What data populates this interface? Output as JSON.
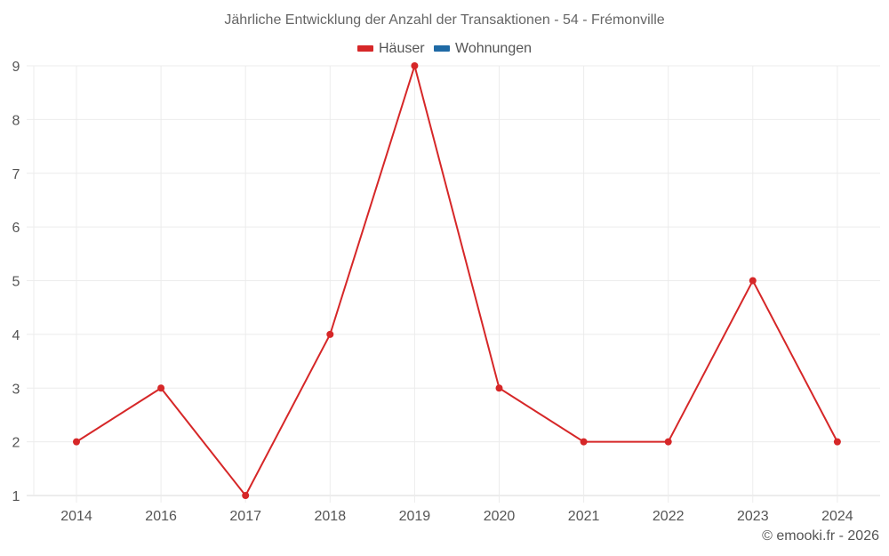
{
  "title": "Jährliche Entwicklung der Anzahl der Transaktionen - 54 - Frémonville",
  "legend": [
    {
      "label": "Häuser",
      "color": "#d62728"
    },
    {
      "label": "Wohnungen",
      "color": "#1f6aa5"
    }
  ],
  "credit": "© emooki.fr - 2026",
  "chart_data": {
    "type": "line",
    "title": "Jährliche Entwicklung der Anzahl der Transaktionen - 54 - Frémonville",
    "xlabel": "",
    "ylabel": "",
    "categories": [
      "2014",
      "2016",
      "2017",
      "2018",
      "2019",
      "2020",
      "2021",
      "2022",
      "2023",
      "2024"
    ],
    "series": [
      {
        "name": "Häuser",
        "color": "#d62728",
        "values": [
          2,
          3,
          1,
          4,
          9,
          3,
          2,
          2,
          5,
          2
        ]
      },
      {
        "name": "Wohnungen",
        "color": "#1f6aa5",
        "values": []
      }
    ],
    "yticks": [
      1,
      2,
      3,
      4,
      5,
      6,
      7,
      8,
      9
    ],
    "ylim": [
      1,
      9
    ],
    "grid": true,
    "legend_position": "top"
  }
}
